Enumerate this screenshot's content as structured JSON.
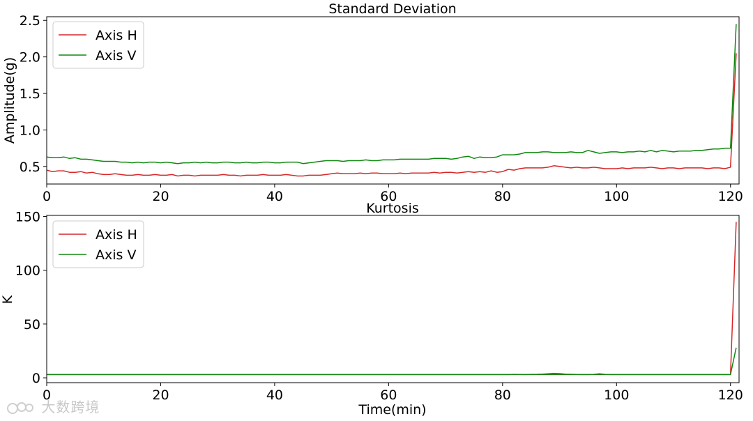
{
  "chart_data": [
    {
      "type": "line",
      "title": "Standard Deviation",
      "xlabel": "",
      "ylabel": "Amplitude(g)",
      "xlim": [
        0,
        121.5
      ],
      "ylim": [
        0.26,
        2.55
      ],
      "xticks": [
        0,
        20,
        40,
        60,
        80,
        100,
        120
      ],
      "xtick_labels": [
        "0",
        "20",
        "40",
        "60",
        "80",
        "100",
        "120"
      ],
      "yticks": [
        0.5,
        1.0,
        1.5,
        2.0,
        2.5
      ],
      "ytick_labels": [
        "0.5",
        "1.0",
        "1.5",
        "2.0",
        "2.5"
      ],
      "grid": false,
      "legend": "upper left",
      "x_start": 0,
      "x_step": 1,
      "series": [
        {
          "name": "Axis H",
          "color": "#d62728",
          "values": [
            0.45,
            0.43,
            0.44,
            0.44,
            0.42,
            0.42,
            0.43,
            0.41,
            0.42,
            0.4,
            0.39,
            0.39,
            0.4,
            0.39,
            0.38,
            0.38,
            0.39,
            0.38,
            0.38,
            0.39,
            0.38,
            0.38,
            0.39,
            0.37,
            0.38,
            0.38,
            0.37,
            0.38,
            0.38,
            0.38,
            0.38,
            0.39,
            0.38,
            0.38,
            0.37,
            0.38,
            0.38,
            0.38,
            0.39,
            0.38,
            0.38,
            0.38,
            0.39,
            0.38,
            0.37,
            0.37,
            0.38,
            0.38,
            0.38,
            0.39,
            0.4,
            0.41,
            0.4,
            0.4,
            0.4,
            0.41,
            0.4,
            0.41,
            0.41,
            0.4,
            0.4,
            0.4,
            0.41,
            0.4,
            0.41,
            0.41,
            0.41,
            0.41,
            0.42,
            0.41,
            0.42,
            0.42,
            0.41,
            0.42,
            0.43,
            0.42,
            0.43,
            0.42,
            0.44,
            0.42,
            0.43,
            0.46,
            0.45,
            0.47,
            0.48,
            0.48,
            0.48,
            0.48,
            0.49,
            0.51,
            0.5,
            0.49,
            0.48,
            0.49,
            0.48,
            0.48,
            0.49,
            0.48,
            0.47,
            0.47,
            0.47,
            0.48,
            0.47,
            0.48,
            0.48,
            0.48,
            0.49,
            0.48,
            0.47,
            0.48,
            0.48,
            0.47,
            0.48,
            0.48,
            0.48,
            0.48,
            0.47,
            0.48,
            0.48,
            0.47,
            0.49,
            2.05
          ]
        },
        {
          "name": "Axis V",
          "color": "#108810",
          "values": [
            0.63,
            0.62,
            0.62,
            0.63,
            0.61,
            0.62,
            0.6,
            0.6,
            0.59,
            0.58,
            0.57,
            0.57,
            0.57,
            0.56,
            0.56,
            0.55,
            0.56,
            0.55,
            0.56,
            0.56,
            0.55,
            0.56,
            0.55,
            0.54,
            0.55,
            0.55,
            0.56,
            0.55,
            0.56,
            0.55,
            0.55,
            0.56,
            0.56,
            0.55,
            0.55,
            0.56,
            0.55,
            0.55,
            0.56,
            0.56,
            0.55,
            0.55,
            0.56,
            0.56,
            0.56,
            0.54,
            0.55,
            0.56,
            0.57,
            0.58,
            0.58,
            0.58,
            0.57,
            0.58,
            0.58,
            0.58,
            0.59,
            0.58,
            0.58,
            0.59,
            0.59,
            0.59,
            0.6,
            0.6,
            0.6,
            0.6,
            0.6,
            0.6,
            0.61,
            0.61,
            0.61,
            0.6,
            0.61,
            0.63,
            0.64,
            0.61,
            0.63,
            0.62,
            0.62,
            0.63,
            0.66,
            0.66,
            0.66,
            0.67,
            0.69,
            0.69,
            0.69,
            0.7,
            0.7,
            0.69,
            0.69,
            0.69,
            0.7,
            0.69,
            0.69,
            0.72,
            0.7,
            0.68,
            0.69,
            0.7,
            0.7,
            0.69,
            0.7,
            0.7,
            0.71,
            0.7,
            0.72,
            0.7,
            0.72,
            0.71,
            0.7,
            0.71,
            0.71,
            0.71,
            0.72,
            0.72,
            0.73,
            0.74,
            0.74,
            0.75,
            0.75,
            2.45
          ]
        }
      ]
    },
    {
      "type": "line",
      "title": "Kurtosis",
      "xlabel": "Time(min)",
      "ylabel": "K",
      "xlim": [
        0,
        121.5
      ],
      "ylim": [
        -4.5,
        151
      ],
      "xticks": [
        0,
        20,
        40,
        60,
        80,
        100,
        120
      ],
      "xtick_labels": [
        "0",
        "20",
        "40",
        "60",
        "80",
        "100",
        "120"
      ],
      "yticks": [
        0,
        50,
        100,
        150
      ],
      "ytick_labels": [
        "0",
        "50",
        "100",
        "150"
      ],
      "grid": false,
      "legend": "upper left",
      "x_start": 0,
      "x_step": 1,
      "series": [
        {
          "name": "Axis H",
          "color": "#d62728",
          "values": [
            3.0,
            3.0,
            3.0,
            3.0,
            3.0,
            3.0,
            3.0,
            3.0,
            3.0,
            3.0,
            3.0,
            3.0,
            3.0,
            3.0,
            3.0,
            3.0,
            3.0,
            3.0,
            3.0,
            3.0,
            3.0,
            3.0,
            3.0,
            3.0,
            3.0,
            3.0,
            3.0,
            3.0,
            3.0,
            3.0,
            3.0,
            3.0,
            3.0,
            3.0,
            3.0,
            3.0,
            3.0,
            3.0,
            3.0,
            3.0,
            3.0,
            3.0,
            3.0,
            3.0,
            3.0,
            3.0,
            3.0,
            3.0,
            3.0,
            3.0,
            3.0,
            3.0,
            3.0,
            3.0,
            3.0,
            3.0,
            3.0,
            3.0,
            3.0,
            3.0,
            3.0,
            3.0,
            3.0,
            3.0,
            3.0,
            3.0,
            3.0,
            3.0,
            3.0,
            3.0,
            3.0,
            3.0,
            3.0,
            3.0,
            3.0,
            3.0,
            3.0,
            3.0,
            3.0,
            3.0,
            3.0,
            3.0,
            3.2,
            3.1,
            3.0,
            3.2,
            3.3,
            3.5,
            3.8,
            4.2,
            3.9,
            3.5,
            3.3,
            3.1,
            3.0,
            3.0,
            3.2,
            3.8,
            3.2,
            3.0,
            3.0,
            3.0,
            3.0,
            3.0,
            3.0,
            3.0,
            3.0,
            3.0,
            3.0,
            3.0,
            3.0,
            3.0,
            3.0,
            3.0,
            3.0,
            3.0,
            3.0,
            3.0,
            3.0,
            3.0,
            3.0,
            145
          ]
        },
        {
          "name": "Axis V",
          "color": "#108810",
          "values": [
            3.0,
            3.0,
            3.0,
            3.0,
            3.0,
            3.0,
            3.0,
            3.0,
            3.0,
            3.0,
            3.0,
            3.0,
            3.0,
            3.0,
            3.0,
            3.0,
            3.0,
            3.0,
            3.0,
            3.0,
            3.0,
            3.0,
            3.0,
            3.0,
            3.0,
            3.0,
            3.0,
            3.0,
            3.0,
            3.0,
            3.0,
            3.0,
            3.0,
            3.0,
            3.0,
            3.0,
            3.0,
            3.0,
            3.0,
            3.0,
            3.0,
            3.0,
            3.0,
            3.0,
            3.0,
            3.0,
            3.0,
            3.0,
            3.0,
            3.0,
            3.0,
            3.0,
            3.0,
            3.0,
            3.0,
            3.0,
            3.0,
            3.0,
            3.0,
            3.0,
            3.0,
            3.0,
            3.0,
            3.0,
            3.0,
            3.0,
            3.0,
            3.0,
            3.0,
            3.0,
            3.0,
            3.0,
            3.0,
            3.0,
            3.0,
            3.0,
            3.0,
            3.0,
            3.0,
            3.0,
            3.0,
            3.0,
            3.0,
            3.0,
            3.0,
            3.0,
            3.0,
            3.0,
            3.1,
            3.0,
            3.0,
            3.0,
            3.0,
            3.0,
            3.0,
            3.0,
            3.0,
            3.0,
            3.0,
            3.0,
            3.0,
            3.0,
            3.0,
            3.0,
            3.0,
            3.0,
            3.0,
            3.0,
            3.0,
            3.0,
            3.0,
            3.0,
            3.0,
            3.0,
            3.0,
            3.0,
            3.0,
            3.0,
            3.0,
            3.0,
            3.0,
            28
          ]
        }
      ]
    }
  ],
  "watermark": "大数跨境"
}
